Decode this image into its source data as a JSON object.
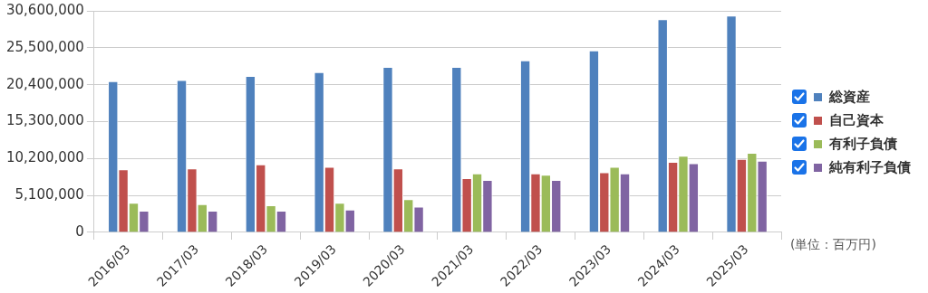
{
  "chart_data": {
    "type": "bar",
    "categories": [
      "2016/03",
      "2017/03",
      "2018/03",
      "2019/03",
      "2020/03",
      "2021/03",
      "2022/03",
      "2023/03",
      "2024/03",
      "2025/03"
    ],
    "series": [
      {
        "name": "総資産",
        "color": "#4f81bd",
        "values": [
          20900000,
          21050000,
          21600000,
          22150000,
          22850000,
          22850000,
          23750000,
          25150000,
          29450000,
          29950000
        ]
      },
      {
        "name": "自己資本",
        "color": "#c0504d",
        "values": [
          8700000,
          8850000,
          9400000,
          9050000,
          8850000,
          7500000,
          8150000,
          8300000,
          9750000,
          10150000
        ]
      },
      {
        "name": "有利子負債",
        "color": "#9bbb59",
        "values": [
          4100000,
          3900000,
          3750000,
          4100000,
          4600000,
          8150000,
          7950000,
          9050000,
          10600000,
          11000000
        ]
      },
      {
        "name": "純有利子負債",
        "color": "#8064a2",
        "values": [
          3000000,
          3000000,
          3000000,
          3150000,
          3550000,
          7250000,
          7250000,
          8150000,
          9550000,
          9900000
        ]
      }
    ],
    "ylim": [
      0,
      30600000
    ],
    "yticks": [
      0,
      {
        "value": 5100000,
        "label": "5,100,000"
      },
      {
        "value": 10200000,
        "label": "10,200,000"
      },
      {
        "value": 15300000,
        "label": "15,300,000"
      },
      {
        "value": 20400000,
        "label": "20,400,000"
      },
      {
        "value": 25500000,
        "label": "25,500,000"
      },
      {
        "value": 30600000,
        "label": "30,600,000"
      }
    ],
    "grid": "y",
    "legend": "right",
    "annotations": [
      "(単位：百万円)"
    ]
  }
}
